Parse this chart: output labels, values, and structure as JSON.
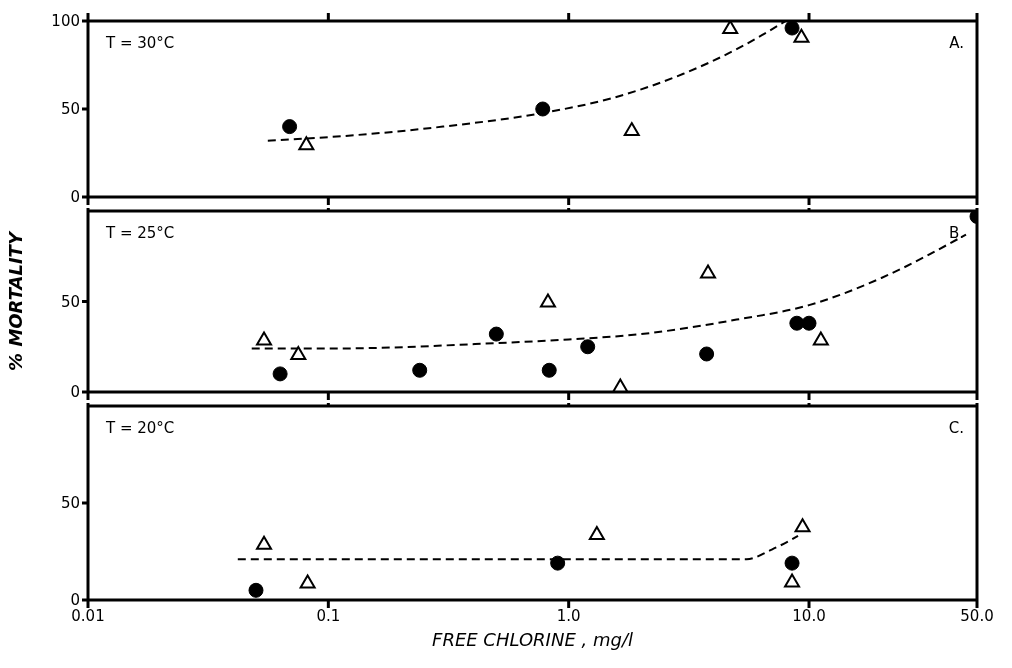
{
  "chart_data": [
    {
      "type": "scatter",
      "log": "x",
      "xlim": [
        0.01,
        50
      ],
      "xticks": [
        0.01,
        0.1,
        1,
        10,
        50
      ],
      "ylim": [
        0,
        100
      ],
      "yticks": [
        0,
        50,
        100
      ],
      "tick_labels": "y",
      "grid": false,
      "legend": false,
      "annotations": [
        "T = 30°C",
        "A."
      ],
      "series": [
        {
          "marker": "circle",
          "color": "#000000",
          "x": [
            0.069,
            0.78,
            8.5
          ],
          "values": [
            40,
            50,
            96
          ]
        },
        {
          "marker": "triangle",
          "color": "#000000",
          "x": [
            0.081,
            1.83,
            4.7,
            9.3
          ],
          "values": [
            30,
            38,
            96,
            91
          ]
        },
        {
          "type": "line",
          "marker": "none",
          "line_style": "dashed",
          "color": "#000000",
          "x": [
            0.056,
            0.1,
            0.3,
            0.8,
            1.5,
            3,
            5,
            8
          ],
          "values": [
            32,
            34,
            40,
            48,
            56,
            70,
            84,
            100
          ]
        }
      ]
    },
    {
      "type": "scatter",
      "log": "x",
      "xlim": [
        0.01,
        50
      ],
      "xticks": [
        0.01,
        0.1,
        1,
        10,
        50
      ],
      "ylim": [
        0,
        100
      ],
      "yticks": [
        0,
        50
      ],
      "tick_labels": "y",
      "grid": false,
      "legend": false,
      "ylabel": "% MORTALITY",
      "annotations": [
        "T = 25°C",
        "B."
      ],
      "series": [
        {
          "marker": "circle",
          "color": "#000000",
          "x": [
            0.063,
            0.24,
            0.5,
            0.83,
            1.2,
            3.75,
            8.9,
            10.0,
            50
          ],
          "values": [
            10,
            12,
            32,
            12,
            25,
            21,
            38,
            38,
            97
          ]
        },
        {
          "marker": "triangle",
          "color": "#000000",
          "x": [
            0.054,
            0.075,
            0.82,
            1.64,
            3.8,
            11.2
          ],
          "values": [
            29,
            21,
            50,
            3,
            66,
            29
          ]
        },
        {
          "type": "line",
          "marker": "none",
          "line_style": "dashed",
          "color": "#000000",
          "x": [
            0.048,
            0.1,
            0.5,
            1.0,
            2,
            5,
            10,
            20,
            45
          ],
          "values": [
            24,
            24,
            27,
            29,
            32,
            40,
            48,
            63,
            87
          ]
        }
      ]
    },
    {
      "type": "scatter",
      "log": "x",
      "xlim": [
        0.01,
        50
      ],
      "xticks": [
        {
          "value": 0.01,
          "label": "0.01"
        },
        {
          "value": 0.1,
          "label": "0.1"
        },
        {
          "value": 1,
          "label": "1.0"
        },
        {
          "value": 10,
          "label": "10.0"
        },
        {
          "value": 50,
          "label": "50.0"
        }
      ],
      "ylim": [
        0,
        100
      ],
      "yticks": [
        0,
        50
      ],
      "grid": false,
      "legend": false,
      "xlabel": "FREE CHLORINE , mg/l",
      "annotations": [
        "T = 20°C",
        "C."
      ],
      "series": [
        {
          "marker": "circle",
          "color": "#000000",
          "x": [
            0.05,
            0.9,
            8.5
          ],
          "values": [
            5,
            19,
            19
          ]
        },
        {
          "marker": "triangle",
          "color": "#000000",
          "x": [
            0.054,
            0.082,
            1.31,
            8.5,
            9.4
          ],
          "values": [
            29,
            9,
            34,
            9.5,
            38
          ]
        },
        {
          "type": "line",
          "marker": "none",
          "line_style": "dashed",
          "color": "#000000",
          "x": [
            0.042,
            5.5,
            7,
            9
          ],
          "values": [
            21,
            21,
            26,
            33
          ]
        }
      ]
    }
  ]
}
